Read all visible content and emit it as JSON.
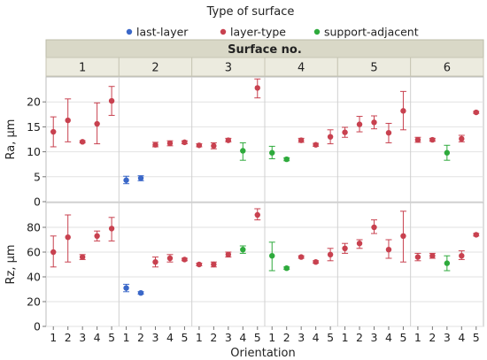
{
  "chart_data": {
    "type": "scatter",
    "title": "",
    "legend": {
      "title": "Type of surface",
      "placement": "top-center",
      "entries": [
        {
          "key": "last",
          "label": "last-layer",
          "color": "#3A67C8"
        },
        {
          "key": "layer",
          "label": "layer-type",
          "color": "#C8414F"
        },
        {
          "key": "support",
          "label": "support-adjacent",
          "color": "#2EAA3C"
        }
      ]
    },
    "facet_header": "Surface no.",
    "surfaces": [
      "1",
      "2",
      "3",
      "4",
      "5",
      "6"
    ],
    "orientations": [
      "1",
      "2",
      "3",
      "4",
      "5"
    ],
    "xlabel": "Orientation",
    "panels": [
      {
        "key": "ra",
        "ylabel": "Ra, µm",
        "ylim": [
          0,
          25
        ],
        "yticks": [
          0,
          5,
          10,
          15,
          20
        ],
        "series": [
          {
            "surface": "1",
            "orientation": "1",
            "type": "layer",
            "y": 14.0,
            "low": 11.0,
            "high": 17.0
          },
          {
            "surface": "1",
            "orientation": "2",
            "type": "layer",
            "y": 16.3,
            "low": 12.0,
            "high": 20.6
          },
          {
            "surface": "1",
            "orientation": "3",
            "type": "layer",
            "y": 12.0,
            "low": 11.8,
            "high": 12.2
          },
          {
            "surface": "1",
            "orientation": "4",
            "type": "layer",
            "y": 15.6,
            "low": 11.6,
            "high": 19.8
          },
          {
            "surface": "1",
            "orientation": "5",
            "type": "layer",
            "y": 20.2,
            "low": 17.3,
            "high": 23.1
          },
          {
            "surface": "2",
            "orientation": "1",
            "type": "last",
            "y": 4.3,
            "low": 3.6,
            "high": 5.1
          },
          {
            "surface": "2",
            "orientation": "2",
            "type": "last",
            "y": 4.7,
            "low": 4.2,
            "high": 5.2
          },
          {
            "surface": "2",
            "orientation": "3",
            "type": "layer",
            "y": 11.4,
            "low": 11.0,
            "high": 11.9
          },
          {
            "surface": "2",
            "orientation": "4",
            "type": "layer",
            "y": 11.7,
            "low": 11.2,
            "high": 12.2
          },
          {
            "surface": "2",
            "orientation": "5",
            "type": "layer",
            "y": 11.9,
            "low": 11.6,
            "high": 12.2
          },
          {
            "surface": "3",
            "orientation": "1",
            "type": "layer",
            "y": 11.3,
            "low": 11.0,
            "high": 11.6
          },
          {
            "surface": "3",
            "orientation": "2",
            "type": "layer",
            "y": 11.2,
            "low": 10.6,
            "high": 11.8
          },
          {
            "surface": "3",
            "orientation": "3",
            "type": "layer",
            "y": 12.3,
            "low": 12.0,
            "high": 12.7
          },
          {
            "surface": "3",
            "orientation": "4",
            "type": "support",
            "y": 10.2,
            "low": 8.3,
            "high": 11.8
          },
          {
            "surface": "3",
            "orientation": "5",
            "type": "layer",
            "y": 22.8,
            "low": 20.8,
            "high": 24.6
          },
          {
            "surface": "4",
            "orientation": "1",
            "type": "support",
            "y": 9.8,
            "low": 8.6,
            "high": 11.1
          },
          {
            "surface": "4",
            "orientation": "2",
            "type": "support",
            "y": 8.5,
            "low": 8.2,
            "high": 8.8
          },
          {
            "surface": "4",
            "orientation": "3",
            "type": "layer",
            "y": 12.3,
            "low": 11.9,
            "high": 12.7
          },
          {
            "surface": "4",
            "orientation": "4",
            "type": "layer",
            "y": 11.4,
            "low": 11.1,
            "high": 11.7
          },
          {
            "surface": "4",
            "orientation": "5",
            "type": "layer",
            "y": 13.0,
            "low": 11.6,
            "high": 14.4
          },
          {
            "surface": "5",
            "orientation": "1",
            "type": "layer",
            "y": 13.9,
            "low": 12.9,
            "high": 14.9
          },
          {
            "surface": "5",
            "orientation": "2",
            "type": "layer",
            "y": 15.5,
            "low": 14.0,
            "high": 17.1
          },
          {
            "surface": "5",
            "orientation": "3",
            "type": "layer",
            "y": 15.9,
            "low": 14.6,
            "high": 17.2
          },
          {
            "surface": "5",
            "orientation": "4",
            "type": "layer",
            "y": 13.8,
            "low": 11.8,
            "high": 15.7
          },
          {
            "surface": "5",
            "orientation": "5",
            "type": "layer",
            "y": 18.2,
            "low": 14.4,
            "high": 22.1
          },
          {
            "surface": "6",
            "orientation": "1",
            "type": "layer",
            "y": 12.4,
            "low": 11.9,
            "high": 12.9
          },
          {
            "surface": "6",
            "orientation": "2",
            "type": "layer",
            "y": 12.4,
            "low": 12.1,
            "high": 12.7
          },
          {
            "surface": "6",
            "orientation": "3",
            "type": "support",
            "y": 9.8,
            "low": 8.3,
            "high": 11.3
          },
          {
            "surface": "6",
            "orientation": "4",
            "type": "layer",
            "y": 12.6,
            "low": 12.0,
            "high": 13.3
          },
          {
            "surface": "6",
            "orientation": "5",
            "type": "layer",
            "y": 17.9,
            "low": 17.7,
            "high": 18.1
          }
        ]
      },
      {
        "key": "rz",
        "ylabel": "Rz, µm",
        "ylim": [
          0,
          100
        ],
        "yticks": [
          0,
          20,
          40,
          60,
          80
        ],
        "series": [
          {
            "surface": "1",
            "orientation": "1",
            "type": "layer",
            "y": 60,
            "low": 48,
            "high": 73
          },
          {
            "surface": "1",
            "orientation": "2",
            "type": "layer",
            "y": 72,
            "low": 52,
            "high": 90
          },
          {
            "surface": "1",
            "orientation": "3",
            "type": "layer",
            "y": 56,
            "low": 54,
            "high": 58
          },
          {
            "surface": "1",
            "orientation": "4",
            "type": "layer",
            "y": 73,
            "low": 69,
            "high": 77
          },
          {
            "surface": "1",
            "orientation": "5",
            "type": "layer",
            "y": 79,
            "low": 69,
            "high": 88
          },
          {
            "surface": "2",
            "orientation": "1",
            "type": "last",
            "y": 31,
            "low": 28,
            "high": 34
          },
          {
            "surface": "2",
            "orientation": "2",
            "type": "last",
            "y": 27,
            "low": 26,
            "high": 28
          },
          {
            "surface": "2",
            "orientation": "3",
            "type": "layer",
            "y": 52,
            "low": 48,
            "high": 56
          },
          {
            "surface": "2",
            "orientation": "4",
            "type": "layer",
            "y": 55,
            "low": 52,
            "high": 58
          },
          {
            "surface": "2",
            "orientation": "5",
            "type": "layer",
            "y": 54,
            "low": 53,
            "high": 55
          },
          {
            "surface": "3",
            "orientation": "1",
            "type": "layer",
            "y": 50,
            "low": 49,
            "high": 51
          },
          {
            "surface": "3",
            "orientation": "2",
            "type": "layer",
            "y": 50,
            "low": 48,
            "high": 52
          },
          {
            "surface": "3",
            "orientation": "3",
            "type": "layer",
            "y": 58,
            "low": 56,
            "high": 60
          },
          {
            "surface": "3",
            "orientation": "4",
            "type": "support",
            "y": 62,
            "low": 59,
            "high": 65
          },
          {
            "surface": "3",
            "orientation": "5",
            "type": "layer",
            "y": 90,
            "low": 86,
            "high": 95
          },
          {
            "surface": "4",
            "orientation": "1",
            "type": "support",
            "y": 57,
            "low": 45,
            "high": 68
          },
          {
            "surface": "4",
            "orientation": "2",
            "type": "support",
            "y": 47,
            "low": 46,
            "high": 48
          },
          {
            "surface": "4",
            "orientation": "3",
            "type": "layer",
            "y": 56,
            "low": 55,
            "high": 57
          },
          {
            "surface": "4",
            "orientation": "4",
            "type": "layer",
            "y": 52,
            "low": 51,
            "high": 53
          },
          {
            "surface": "4",
            "orientation": "5",
            "type": "layer",
            "y": 58,
            "low": 53,
            "high": 63
          },
          {
            "surface": "5",
            "orientation": "1",
            "type": "layer",
            "y": 63,
            "low": 59,
            "high": 67
          },
          {
            "surface": "5",
            "orientation": "2",
            "type": "layer",
            "y": 67,
            "low": 63,
            "high": 70
          },
          {
            "surface": "5",
            "orientation": "3",
            "type": "layer",
            "y": 80,
            "low": 75,
            "high": 86
          },
          {
            "surface": "5",
            "orientation": "4",
            "type": "layer",
            "y": 62,
            "low": 55,
            "high": 70
          },
          {
            "surface": "5",
            "orientation": "5",
            "type": "layer",
            "y": 73,
            "low": 52,
            "high": 93
          },
          {
            "surface": "6",
            "orientation": "1",
            "type": "layer",
            "y": 56,
            "low": 53,
            "high": 59
          },
          {
            "surface": "6",
            "orientation": "2",
            "type": "layer",
            "y": 57,
            "low": 55,
            "high": 59
          },
          {
            "surface": "6",
            "orientation": "3",
            "type": "support",
            "y": 51,
            "low": 45,
            "high": 57
          },
          {
            "surface": "6",
            "orientation": "4",
            "type": "layer",
            "y": 57,
            "low": 54,
            "high": 61
          },
          {
            "surface": "6",
            "orientation": "5",
            "type": "layer",
            "y": 74,
            "low": 73,
            "high": 75
          }
        ]
      }
    ],
    "grid": true
  }
}
